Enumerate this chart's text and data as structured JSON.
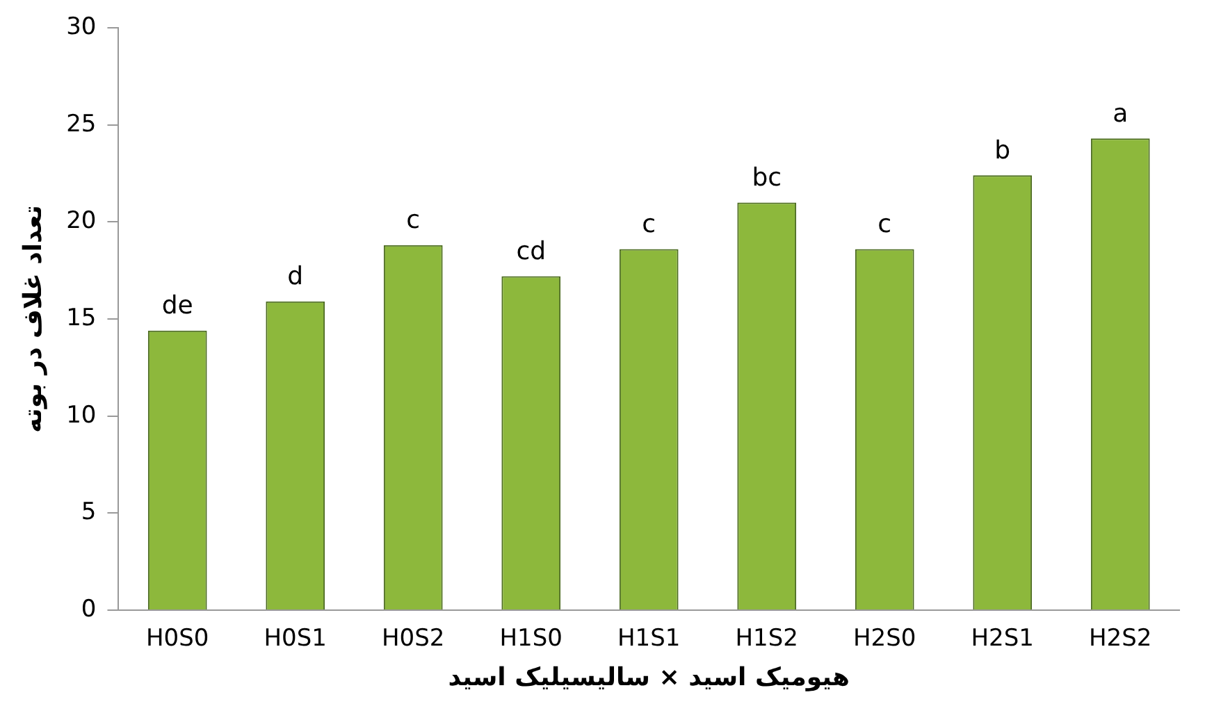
{
  "chart_data": {
    "type": "bar",
    "xlabel": "هیومیک اسید × سالیسیلیک اسید",
    "ylabel": "تعداد غلاف در بوته",
    "categories": [
      "H0S0",
      "H0S1",
      "H0S2",
      "H1S0",
      "H1S1",
      "H1S2",
      "H2S0",
      "H2S1",
      "H2S2"
    ],
    "values": [
      14.4,
      15.9,
      18.8,
      17.2,
      18.6,
      21.0,
      18.6,
      22.4,
      24.3
    ],
    "value_labels": [
      "de",
      "d",
      "c",
      "cd",
      "c",
      "bc",
      "c",
      "b",
      "a"
    ],
    "color": "#8db83c",
    "ylim": [
      0,
      30
    ],
    "yticks": [
      0,
      5,
      10,
      15,
      20,
      25,
      30
    ],
    "grid": false,
    "legend": false
  }
}
